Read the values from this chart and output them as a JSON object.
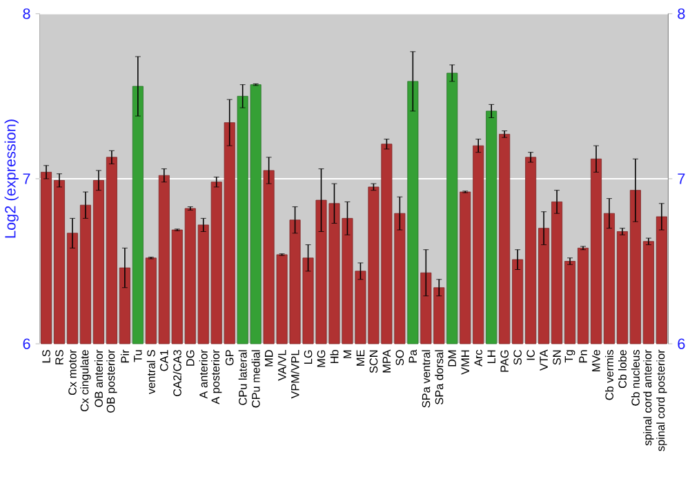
{
  "chart_data": {
    "type": "bar",
    "ylabel": "Log2 (expression)",
    "categories": [
      "LS",
      "RS",
      "Cx motor",
      "Cx cingulate",
      "OB anterior",
      "OB posterior",
      "Pir",
      "Tu",
      "ventral S",
      "CA1",
      "CA2/CA3",
      "DG",
      "A anterior",
      "A posterior",
      "GP",
      "CPu lateral",
      "CPu medial",
      "MD",
      "VA/VL",
      "VPM/VPL",
      "LG",
      "MG",
      "Hb",
      "M",
      "ME",
      "SCN",
      "MPA",
      "SO",
      "Pa",
      "SPa ventral",
      "SPa dorsal",
      "DM",
      "VMH",
      "Arc",
      "LH",
      "PAG",
      "SC",
      "IC",
      "VTA",
      "SN",
      "Tg",
      "Pn",
      "MVe",
      "Cb vermis",
      "Cb lobe",
      "Cb nucleus",
      "spinal cord anterior",
      "spinal cord posterior"
    ],
    "values": [
      7.04,
      6.99,
      6.67,
      6.84,
      6.99,
      7.13,
      6.46,
      7.56,
      6.52,
      7.02,
      6.69,
      6.82,
      6.72,
      6.98,
      7.34,
      7.5,
      7.57,
      7.05,
      6.54,
      6.75,
      6.52,
      6.87,
      6.85,
      6.76,
      6.44,
      6.95,
      7.21,
      6.79,
      7.59,
      6.43,
      6.34,
      7.64,
      6.92,
      7.2,
      7.41,
      7.27,
      6.51,
      7.13,
      6.7,
      6.86,
      6.5,
      6.58,
      7.12,
      6.79,
      6.68,
      6.93,
      6.62,
      6.77
    ],
    "errors": [
      0.04,
      0.04,
      0.09,
      0.08,
      0.06,
      0.04,
      0.12,
      0.18,
      0.005,
      0.04,
      0.005,
      0.01,
      0.04,
      0.03,
      0.14,
      0.07,
      0.005,
      0.08,
      0.005,
      0.08,
      0.08,
      0.19,
      0.12,
      0.1,
      0.05,
      0.02,
      0.03,
      0.1,
      0.18,
      0.14,
      0.05,
      0.05,
      0.005,
      0.04,
      0.04,
      0.02,
      0.06,
      0.03,
      0.1,
      0.07,
      0.02,
      0.01,
      0.08,
      0.09,
      0.02,
      0.19,
      0.02,
      0.08
    ],
    "colors": [
      "#b03232",
      "#b03232",
      "#b03232",
      "#b03232",
      "#b03232",
      "#b03232",
      "#b03232",
      "#35a035",
      "#b03232",
      "#b03232",
      "#b03232",
      "#b03232",
      "#b03232",
      "#b03232",
      "#b03232",
      "#35a035",
      "#35a035",
      "#b03232",
      "#b03232",
      "#b03232",
      "#b03232",
      "#b03232",
      "#b03232",
      "#b03232",
      "#b03232",
      "#b03232",
      "#b03232",
      "#b03232",
      "#35a035",
      "#b03232",
      "#b03232",
      "#35a035",
      "#b03232",
      "#b03232",
      "#35a035",
      "#b03232",
      "#b03232",
      "#b03232",
      "#b03232",
      "#b03232",
      "#b03232",
      "#b03232",
      "#b03232",
      "#b03232",
      "#b03232",
      "#b03232",
      "#b03232",
      "#b03232"
    ],
    "ylim": [
      6,
      8
    ],
    "yticks": [
      6,
      7,
      8
    ],
    "y2lim": [
      6,
      8
    ],
    "y2ticks": [
      6,
      7,
      8
    ],
    "grid": "y"
  }
}
